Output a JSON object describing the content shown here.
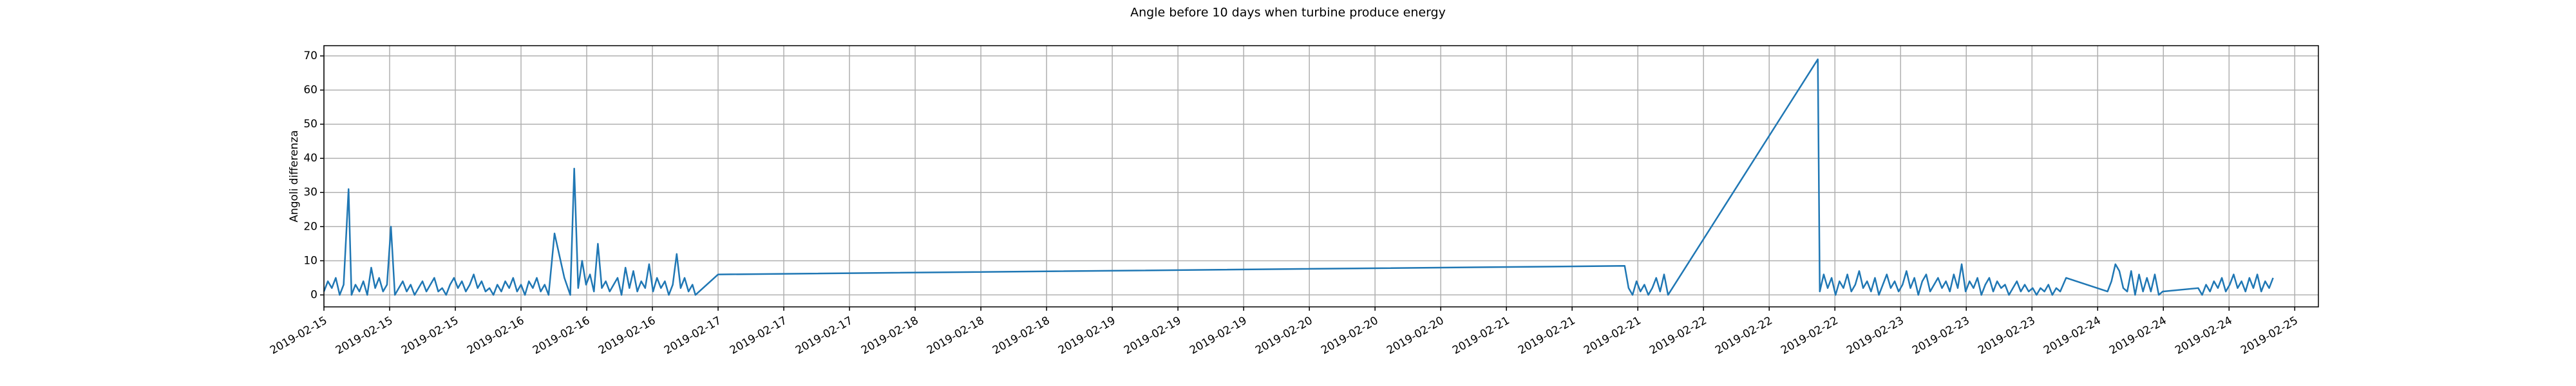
{
  "chart_data": {
    "type": "line",
    "title": "Angle before 10 days when turbine produce energy",
    "y_label": "Angoli differenza",
    "color": "#1f77b4",
    "grid": true,
    "x": [
      0,
      0.02,
      0.04,
      0.06,
      0.08,
      0.1,
      0.125,
      0.14,
      0.16,
      0.18,
      0.2,
      0.22,
      0.24,
      0.26,
      0.28,
      0.3,
      0.32,
      0.34,
      0.36,
      0.38,
      0.4,
      0.42,
      0.44,
      0.46,
      0.48,
      0.5,
      0.52,
      0.54,
      0.56,
      0.58,
      0.6,
      0.62,
      0.64,
      0.66,
      0.68,
      0.7,
      0.72,
      0.74,
      0.76,
      0.78,
      0.8,
      0.82,
      0.84,
      0.86,
      0.88,
      0.9,
      0.92,
      0.94,
      0.96,
      0.98,
      1,
      1.02,
      1.04,
      1.06,
      1.08,
      1.1,
      1.12,
      1.14,
      1.17,
      1.22,
      1.25,
      1.27,
      1.29,
      1.31,
      1.33,
      1.35,
      1.37,
      1.39,
      1.41,
      1.43,
      1.45,
      1.47,
      1.49,
      1.51,
      1.53,
      1.55,
      1.57,
      1.59,
      1.61,
      1.63,
      1.65,
      1.67,
      1.69,
      1.71,
      1.73,
      1.75,
      1.77,
      1.79,
      1.81,
      1.83,
      1.85,
      1.87,
      1.885,
      2,
      6.6,
      6.62,
      6.64,
      6.66,
      6.68,
      6.7,
      6.72,
      6.74,
      6.76,
      6.78,
      6.8,
      6.82,
      7.58,
      7.59,
      7.61,
      7.63,
      7.65,
      7.67,
      7.69,
      7.71,
      7.73,
      7.75,
      7.77,
      7.79,
      7.81,
      7.83,
      7.85,
      7.87,
      7.89,
      7.91,
      7.93,
      7.95,
      7.97,
      7.99,
      8.01,
      8.03,
      8.05,
      8.07,
      8.09,
      8.11,
      8.13,
      8.15,
      8.17,
      8.19,
      8.21,
      8.23,
      8.25,
      8.27,
      8.29,
      8.31,
      8.33,
      8.35,
      8.37,
      8.39,
      8.41,
      8.43,
      8.45,
      8.47,
      8.49,
      8.51,
      8.53,
      8.55,
      8.57,
      8.59,
      8.61,
      8.63,
      8.65,
      8.67,
      8.69,
      8.71,
      8.73,
      8.75,
      8.77,
      8.79,
      8.81,
      8.84,
      9.05,
      9.07,
      9.09,
      9.11,
      9.13,
      9.15,
      9.17,
      9.19,
      9.21,
      9.23,
      9.25,
      9.27,
      9.29,
      9.31,
      9.33,
      9.51,
      9.53,
      9.55,
      9.57,
      9.59,
      9.61,
      9.63,
      9.65,
      9.67,
      9.69,
      9.71,
      9.73,
      9.75,
      9.77,
      9.79,
      9.81,
      9.83,
      9.85,
      9.87,
      9.89
    ],
    "values": [
      1,
      4,
      2,
      5,
      0,
      3,
      31,
      0,
      3,
      1,
      4,
      0,
      8,
      2,
      5,
      1,
      3,
      20,
      0,
      2,
      4,
      1,
      3,
      0,
      2,
      4,
      1,
      3,
      5,
      1,
      2,
      0,
      3,
      5,
      2,
      4,
      1,
      3,
      6,
      2,
      4,
      1,
      2,
      0,
      3,
      1,
      4,
      2,
      5,
      1,
      3,
      0,
      4,
      2,
      5,
      1,
      3,
      0,
      18,
      5,
      0,
      37,
      2,
      10,
      3,
      6,
      1,
      15,
      2,
      4,
      1,
      3,
      5,
      0,
      8,
      2,
      7,
      1,
      4,
      2,
      9,
      1,
      5,
      2,
      4,
      0,
      3,
      12,
      2,
      5,
      1,
      3,
      0,
      6,
      8.5,
      2,
      0,
      4,
      1,
      3,
      0,
      2,
      5,
      1,
      6,
      0,
      69,
      1,
      6,
      2,
      5,
      0,
      4,
      2,
      6,
      1,
      3,
      7,
      2,
      4,
      1,
      5,
      0,
      3,
      6,
      2,
      4,
      1,
      3,
      7,
      2,
      5,
      0,
      4,
      6,
      1,
      3,
      5,
      2,
      4,
      1,
      6,
      2,
      9,
      1,
      4,
      2,
      5,
      0,
      3,
      5,
      1,
      4,
      2,
      3,
      0,
      2,
      4,
      1,
      3,
      1,
      2,
      0,
      2,
      1,
      3,
      0,
      2,
      1,
      5,
      1,
      4,
      9,
      7,
      2,
      1,
      7,
      0,
      6,
      1,
      5,
      1,
      6,
      0,
      1,
      2,
      0,
      3,
      1,
      4,
      2,
      5,
      1,
      3,
      6,
      2,
      4,
      1,
      5,
      2,
      6,
      1,
      4,
      2,
      5
    ],
    "xlim": [
      0,
      10.12
    ],
    "xticks": [
      {
        "value": 0,
        "label": "2019-02-15"
      },
      {
        "value": 0.3333,
        "label": "2019-02-15"
      },
      {
        "value": 0.6667,
        "label": "2019-02-15"
      },
      {
        "value": 1,
        "label": "2019-02-16"
      },
      {
        "value": 1.3333,
        "label": "2019-02-16"
      },
      {
        "value": 1.6667,
        "label": "2019-02-16"
      },
      {
        "value": 2,
        "label": "2019-02-17"
      },
      {
        "value": 2.3333,
        "label": "2019-02-17"
      },
      {
        "value": 2.6667,
        "label": "2019-02-17"
      },
      {
        "value": 3,
        "label": "2019-02-18"
      },
      {
        "value": 3.3333,
        "label": "2019-02-18"
      },
      {
        "value": 3.6667,
        "label": "2019-02-18"
      },
      {
        "value": 4,
        "label": "2019-02-19"
      },
      {
        "value": 4.3333,
        "label": "2019-02-19"
      },
      {
        "value": 4.6667,
        "label": "2019-02-19"
      },
      {
        "value": 5,
        "label": "2019-02-20"
      },
      {
        "value": 5.3333,
        "label": "2019-02-20"
      },
      {
        "value": 5.6667,
        "label": "2019-02-20"
      },
      {
        "value": 6,
        "label": "2019-02-21"
      },
      {
        "value": 6.3333,
        "label": "2019-02-21"
      },
      {
        "value": 6.6667,
        "label": "2019-02-21"
      },
      {
        "value": 7,
        "label": "2019-02-22"
      },
      {
        "value": 7.3333,
        "label": "2019-02-22"
      },
      {
        "value": 7.6667,
        "label": "2019-02-22"
      },
      {
        "value": 8,
        "label": "2019-02-23"
      },
      {
        "value": 8.3333,
        "label": "2019-02-23"
      },
      {
        "value": 8.6667,
        "label": "2019-02-23"
      },
      {
        "value": 9,
        "label": "2019-02-24"
      },
      {
        "value": 9.3333,
        "label": "2019-02-24"
      },
      {
        "value": 9.6667,
        "label": "2019-02-24"
      },
      {
        "value": 10,
        "label": "2019-02-25"
      }
    ],
    "ylim": [
      -3.5,
      73
    ],
    "yticks": [
      0,
      10,
      20,
      30,
      40,
      50,
      60,
      70
    ]
  }
}
